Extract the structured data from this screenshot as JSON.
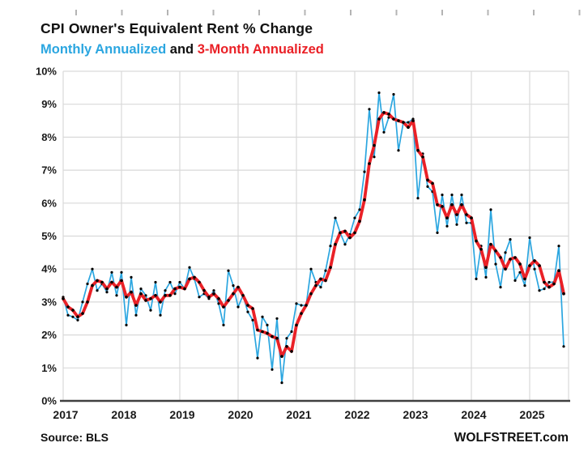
{
  "title": "CPI Owner's Equivalent Rent % Change",
  "subtitle": {
    "monthly": "Monthly Annualized",
    "and": " and ",
    "three_month": "3-Month Annualized"
  },
  "source": "Source: BLS",
  "branding": "WOLFSTREET.com",
  "colors": {
    "monthly_line": "#2ba6e0",
    "three_month_line": "#ea2127",
    "marker": "#000000",
    "grid": "#d9d9d9",
    "axis": "#404040",
    "top_ticks": "#b4b4b4"
  },
  "chart_data": {
    "type": "line",
    "title": "CPI Owner's Equivalent Rent % Change",
    "subtitle": "Monthly Annualized and 3-Month Annualized",
    "x_monthly_from": "2017-01",
    "x_monthly_to": "2025-08",
    "xticklabels": [
      "2017",
      "2018",
      "2019",
      "2020",
      "2021",
      "2022",
      "2023",
      "2024",
      "2025"
    ],
    "yticklabels": [
      "0%",
      "1%",
      "2%",
      "3%",
      "4%",
      "5%",
      "6%",
      "7%",
      "8%",
      "9%",
      "10%"
    ],
    "ylim": [
      0,
      10
    ],
    "grid": true,
    "legend_position": "in-subtitle",
    "series": [
      {
        "name": "Monthly Annualized",
        "color": "#2ba6e0",
        "values": [
          3.15,
          2.6,
          2.55,
          2.45,
          3.0,
          3.55,
          4.0,
          3.35,
          3.55,
          3.3,
          3.9,
          3.2,
          3.9,
          2.3,
          3.75,
          2.6,
          3.4,
          3.2,
          2.75,
          3.6,
          2.6,
          3.35,
          3.6,
          3.25,
          3.6,
          3.4,
          4.05,
          3.7,
          3.15,
          3.25,
          3.1,
          3.35,
          2.95,
          2.3,
          3.95,
          3.5,
          2.85,
          3.2,
          2.7,
          2.45,
          1.3,
          2.55,
          2.3,
          0.95,
          2.5,
          0.55,
          1.9,
          2.1,
          2.95,
          2.9,
          2.9,
          4.0,
          3.6,
          3.45,
          3.95,
          4.7,
          5.55,
          5.1,
          4.75,
          5.05,
          5.55,
          5.8,
          6.95,
          8.85,
          7.4,
          9.35,
          8.15,
          8.6,
          9.3,
          7.6,
          8.45,
          8.45,
          8.55,
          6.15,
          7.5,
          6.5,
          6.35,
          5.1,
          6.25,
          5.3,
          6.25,
          5.35,
          6.25,
          5.4,
          5.4,
          3.7,
          4.7,
          3.75,
          5.8,
          4.15,
          3.45,
          4.5,
          4.9,
          3.65,
          3.9,
          3.5,
          4.95,
          4.0,
          3.35,
          3.4,
          3.6,
          3.6,
          4.7,
          1.65
        ]
      },
      {
        "name": "3-Month Annualized",
        "color": "#ea2127",
        "values": [
          3.1,
          2.85,
          2.75,
          2.55,
          2.65,
          3.0,
          3.5,
          3.65,
          3.6,
          3.4,
          3.6,
          3.45,
          3.65,
          3.15,
          3.3,
          2.9,
          3.25,
          3.05,
          3.1,
          3.2,
          3.0,
          3.2,
          3.2,
          3.4,
          3.45,
          3.4,
          3.7,
          3.75,
          3.6,
          3.35,
          3.15,
          3.25,
          3.1,
          2.85,
          3.05,
          3.25,
          3.45,
          3.2,
          2.9,
          2.8,
          2.15,
          2.1,
          2.05,
          1.95,
          1.9,
          1.35,
          1.65,
          1.5,
          2.3,
          2.65,
          2.9,
          3.25,
          3.5,
          3.7,
          3.65,
          4.05,
          4.75,
          5.1,
          5.15,
          4.95,
          5.1,
          5.45,
          6.1,
          7.2,
          7.75,
          8.55,
          8.75,
          8.7,
          8.55,
          8.5,
          8.45,
          8.3,
          8.5,
          7.6,
          7.4,
          6.7,
          6.6,
          5.95,
          5.9,
          5.55,
          5.95,
          5.65,
          5.95,
          5.65,
          5.55,
          4.85,
          4.6,
          4.05,
          4.75,
          4.55,
          4.35,
          4.0,
          4.3,
          4.35,
          4.15,
          3.7,
          4.1,
          4.25,
          4.1,
          3.6,
          3.45,
          3.55,
          3.95,
          3.25
        ]
      }
    ]
  }
}
